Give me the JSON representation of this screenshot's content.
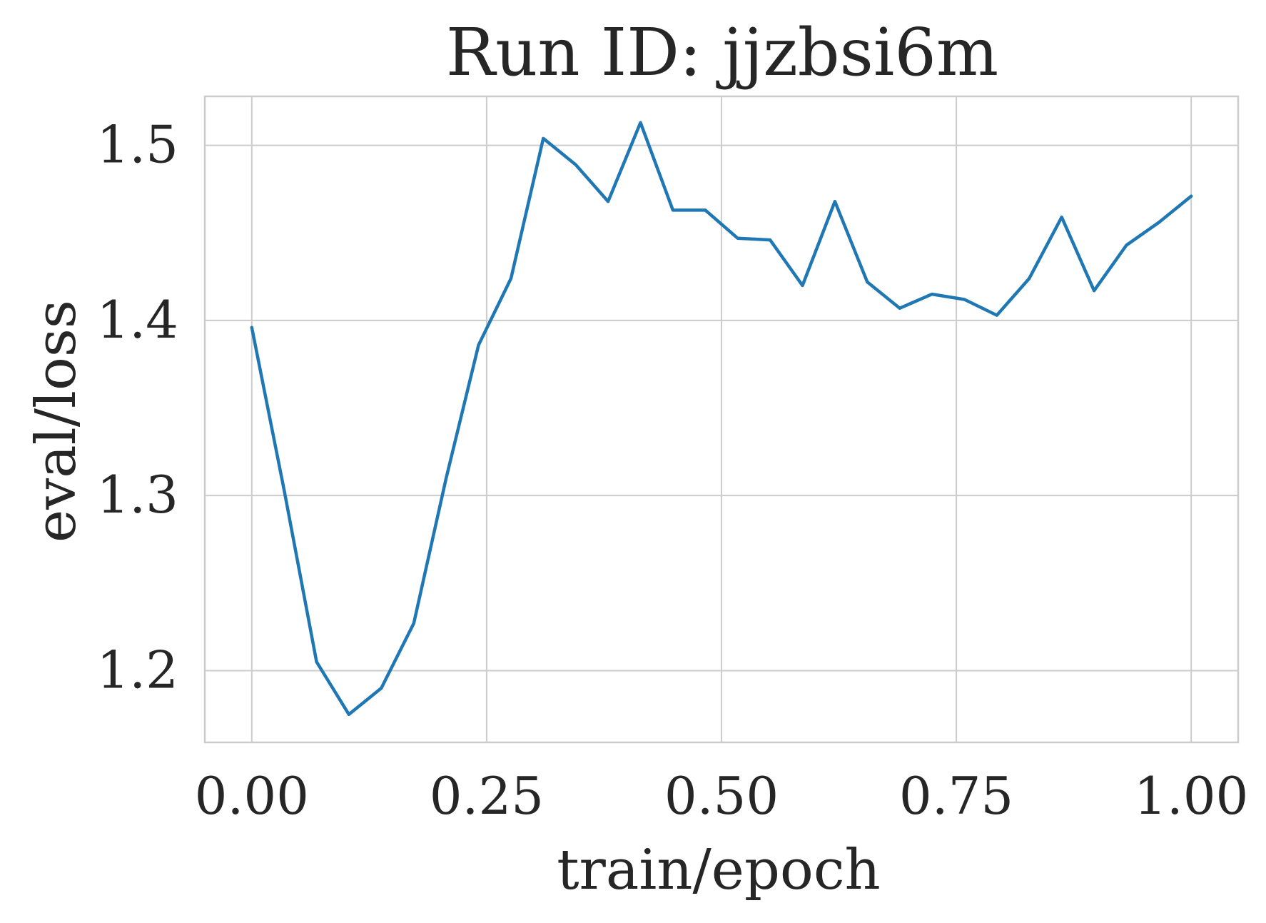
{
  "chart_data": {
    "type": "line",
    "title": "Run ID: jjzbsi6m",
    "xlabel": "train/epoch",
    "ylabel": "eval/loss",
    "xlim": [
      -0.05,
      1.05
    ],
    "ylim": [
      1.159,
      1.528
    ],
    "xticks": [
      0.0,
      0.25,
      0.5,
      0.75,
      1.0
    ],
    "xtick_labels": [
      "0.00",
      "0.25",
      "0.50",
      "0.75",
      "1.00"
    ],
    "yticks": [
      1.2,
      1.3,
      1.4,
      1.5
    ],
    "ytick_labels": [
      "1.2",
      "1.3",
      "1.4",
      "1.5"
    ],
    "grid": true,
    "series": [
      {
        "color": "#1f77b4",
        "x": [
          0.0,
          0.0345,
          0.069,
          0.1034,
          0.1379,
          0.1724,
          0.2069,
          0.2414,
          0.2759,
          0.3103,
          0.3448,
          0.3793,
          0.4138,
          0.4483,
          0.4828,
          0.5172,
          0.5517,
          0.5862,
          0.6207,
          0.6552,
          0.6897,
          0.7241,
          0.7586,
          0.7931,
          0.8276,
          0.8621,
          0.8966,
          0.931,
          0.9655,
          1.0
        ],
        "y": [
          1.396,
          1.303,
          1.205,
          1.175,
          1.19,
          1.227,
          1.31,
          1.386,
          1.424,
          1.504,
          1.489,
          1.468,
          1.513,
          1.463,
          1.463,
          1.447,
          1.446,
          1.42,
          1.468,
          1.422,
          1.407,
          1.415,
          1.412,
          1.403,
          1.424,
          1.459,
          1.417,
          1.443,
          1.456,
          1.471
        ]
      }
    ]
  }
}
